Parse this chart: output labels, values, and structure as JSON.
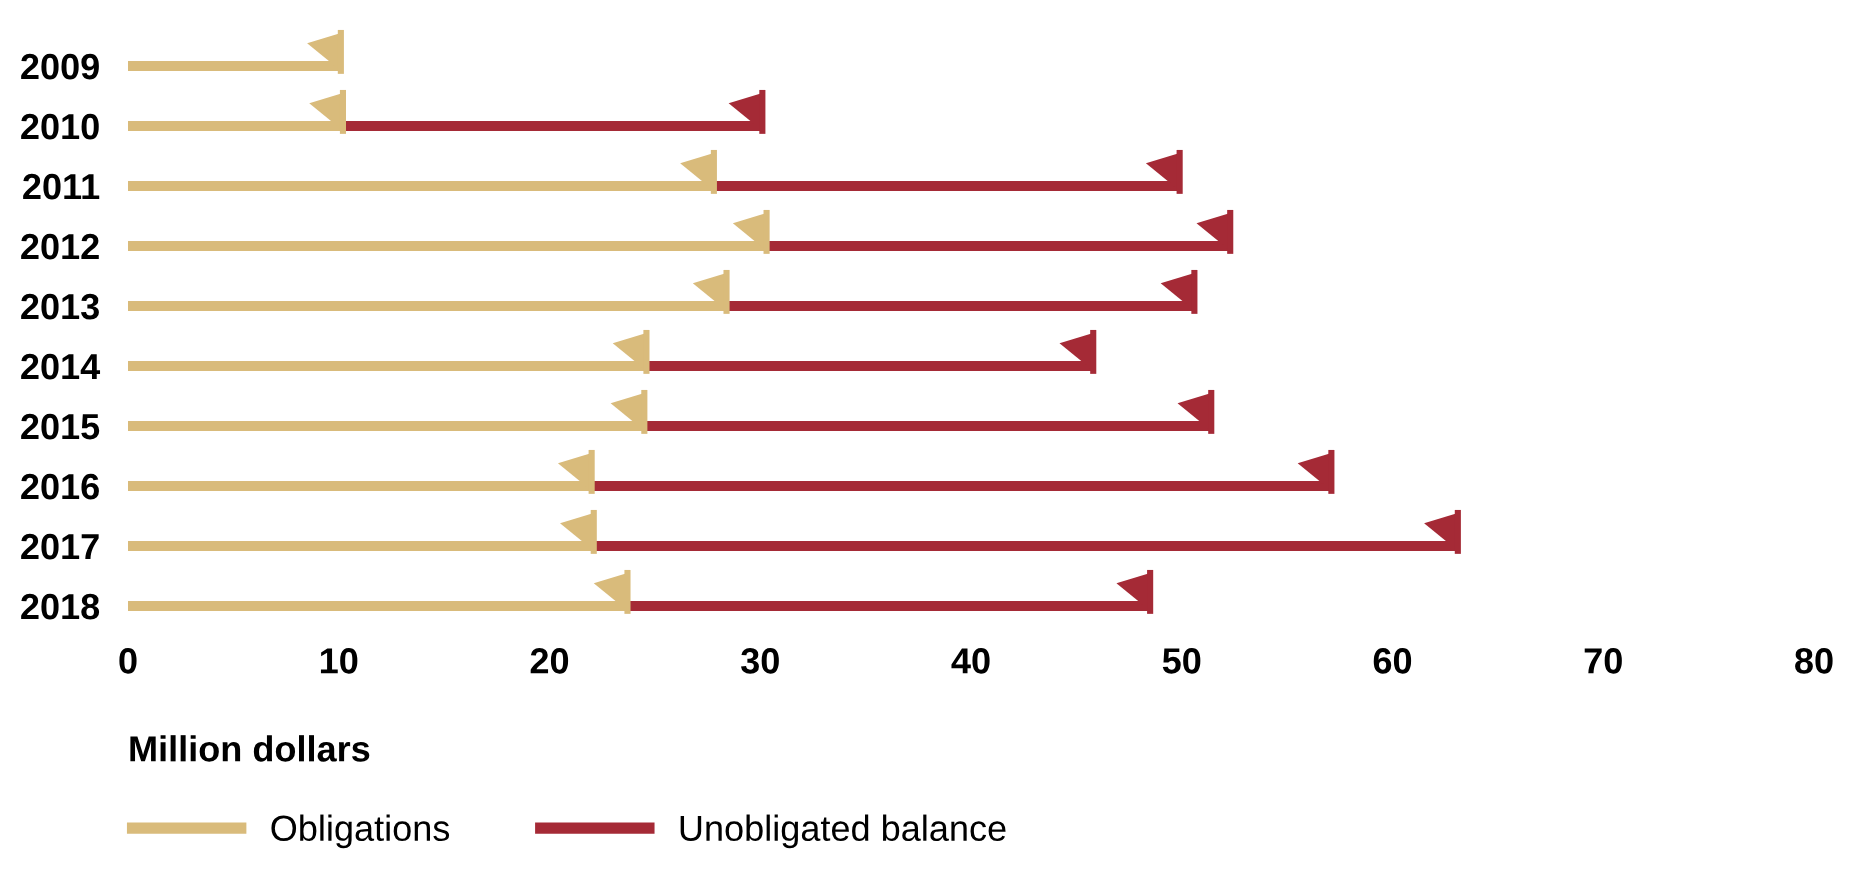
{
  "chart_data": {
    "type": "bar",
    "orientation": "horizontal",
    "stacked": true,
    "xlabel": "Million dollars",
    "categories": [
      "2009",
      "2010",
      "2011",
      "2012",
      "2013",
      "2014",
      "2015",
      "2016",
      "2017",
      "2018"
    ],
    "series": [
      {
        "name": "Obligations",
        "color": "#d9bb7b",
        "values": [
          10.1,
          10.2,
          27.8,
          30.3,
          28.4,
          24.6,
          24.5,
          22.0,
          22.1,
          23.7
        ]
      },
      {
        "name": "Unobligated balance",
        "color": "#a52a36",
        "values": [
          null,
          19.9,
          22.1,
          22.0,
          22.2,
          21.2,
          26.9,
          35.1,
          41.0,
          24.8
        ]
      }
    ],
    "xlim": [
      0,
      80
    ],
    "xticks": [
      0,
      10,
      20,
      30,
      40,
      50,
      60,
      70,
      80
    ],
    "grid": false,
    "legend": "bottom left"
  }
}
